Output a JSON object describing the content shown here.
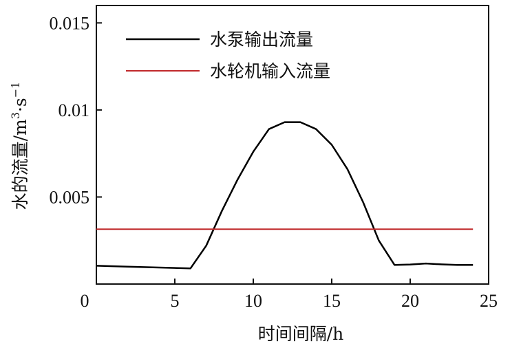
{
  "chart_data": {
    "type": "line",
    "xlabel": "时间间隔/h",
    "ylabel_main": "水的流量/m",
    "ylabel_sup1": "3",
    "ylabel_mid": "·s",
    "ylabel_sup2": "−1",
    "xlim": [
      0,
      25
    ],
    "ylim": [
      0,
      0.016
    ],
    "x_ticks": [
      0,
      5,
      10,
      15,
      20,
      25
    ],
    "x_tick_labels": [
      "0",
      "5",
      "10",
      "15",
      "20",
      "25"
    ],
    "y_ticks": [
      0.005,
      0.01,
      0.015
    ],
    "y_tick_labels": [
      "0.005",
      "0.01",
      "0.015"
    ],
    "grid": false,
    "legend_position": "top-left",
    "series": [
      {
        "name": "水泵输出流量",
        "color": "#000000",
        "x": [
          0,
          2,
          4,
          6,
          7,
          8,
          9,
          10,
          11,
          12,
          13,
          14,
          15,
          16,
          17,
          18,
          19,
          20,
          21,
          22,
          23,
          24
        ],
        "y": [
          0.00105,
          0.001,
          0.00095,
          0.0009,
          0.0022,
          0.0042,
          0.006,
          0.0076,
          0.0089,
          0.0093,
          0.0093,
          0.0089,
          0.008,
          0.0066,
          0.0047,
          0.0025,
          0.0011,
          0.00112,
          0.00118,
          0.00113,
          0.0011,
          0.0011
        ]
      },
      {
        "name": "水轮机输入流量",
        "color": "#c0282a",
        "x": [
          0,
          24
        ],
        "y": [
          0.00315,
          0.00315
        ]
      }
    ]
  }
}
